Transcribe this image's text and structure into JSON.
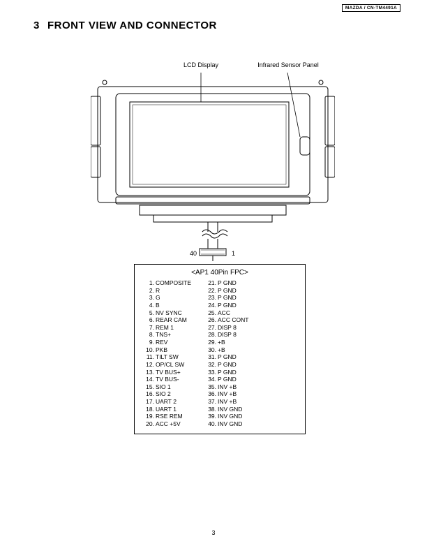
{
  "header_box": "MAZDA / CN-TM4491A",
  "section_number": "3",
  "section_title": "FRONT VIEW AND CONNECTOR",
  "callout_lcd": "LCD Display",
  "callout_ir": "Infrared Sensor Panel",
  "conn_pin_left": "40",
  "conn_pin_right": "1",
  "pinbox_title": "<AP1 40Pin FPC>",
  "pins_left": [
    {
      "n": "1.",
      "t": "COMPOSITE"
    },
    {
      "n": "2.",
      "t": "R"
    },
    {
      "n": "3.",
      "t": "G"
    },
    {
      "n": "4.",
      "t": "B"
    },
    {
      "n": "5.",
      "t": "NV SYNC"
    },
    {
      "n": "6.",
      "t": "REAR CAM"
    },
    {
      "n": "7.",
      "t": "REM 1"
    },
    {
      "n": "8.",
      "t": "TNS+"
    },
    {
      "n": "9.",
      "t": "REV"
    },
    {
      "n": "10.",
      "t": "PKB"
    },
    {
      "n": "11.",
      "t": "TILT SW"
    },
    {
      "n": "12.",
      "t": "OP/CL SW"
    },
    {
      "n": "13.",
      "t": "TV BUS+"
    },
    {
      "n": "14.",
      "t": "TV BUS-"
    },
    {
      "n": "15.",
      "t": "SIO 1"
    },
    {
      "n": "16.",
      "t": "SIO 2"
    },
    {
      "n": "17.",
      "t": "UART 2"
    },
    {
      "n": "18.",
      "t": "UART 1"
    },
    {
      "n": "19.",
      "t": "RSE REM"
    },
    {
      "n": "20.",
      "t": "ACC +5V"
    }
  ],
  "pins_right": [
    {
      "n": "21.",
      "t": "P GND"
    },
    {
      "n": "22.",
      "t": "P GND"
    },
    {
      "n": "23.",
      "t": "P GND"
    },
    {
      "n": "24.",
      "t": "P GND"
    },
    {
      "n": "25.",
      "t": "ACC"
    },
    {
      "n": "26.",
      "t": "ACC CONT"
    },
    {
      "n": "27.",
      "t": "DISP 8"
    },
    {
      "n": "28.",
      "t": "DISP 8"
    },
    {
      "n": "29.",
      "t": "+B"
    },
    {
      "n": "30.",
      "t": "+B"
    },
    {
      "n": "31.",
      "t": "P GND"
    },
    {
      "n": "32.",
      "t": "P GND"
    },
    {
      "n": "33.",
      "t": "P GND"
    },
    {
      "n": "34.",
      "t": "P GND"
    },
    {
      "n": "35.",
      "t": "INV +B"
    },
    {
      "n": "36.",
      "t": "INV +B"
    },
    {
      "n": "37.",
      "t": "INV +B"
    },
    {
      "n": "38.",
      "t": "INV GND"
    },
    {
      "n": "39.",
      "t": "INV GND"
    },
    {
      "n": "40.",
      "t": "INV GND"
    }
  ],
  "page_number": "3",
  "drawing": {
    "stroke": "#000000",
    "stroke_width": 1,
    "bg": "#ffffff"
  }
}
